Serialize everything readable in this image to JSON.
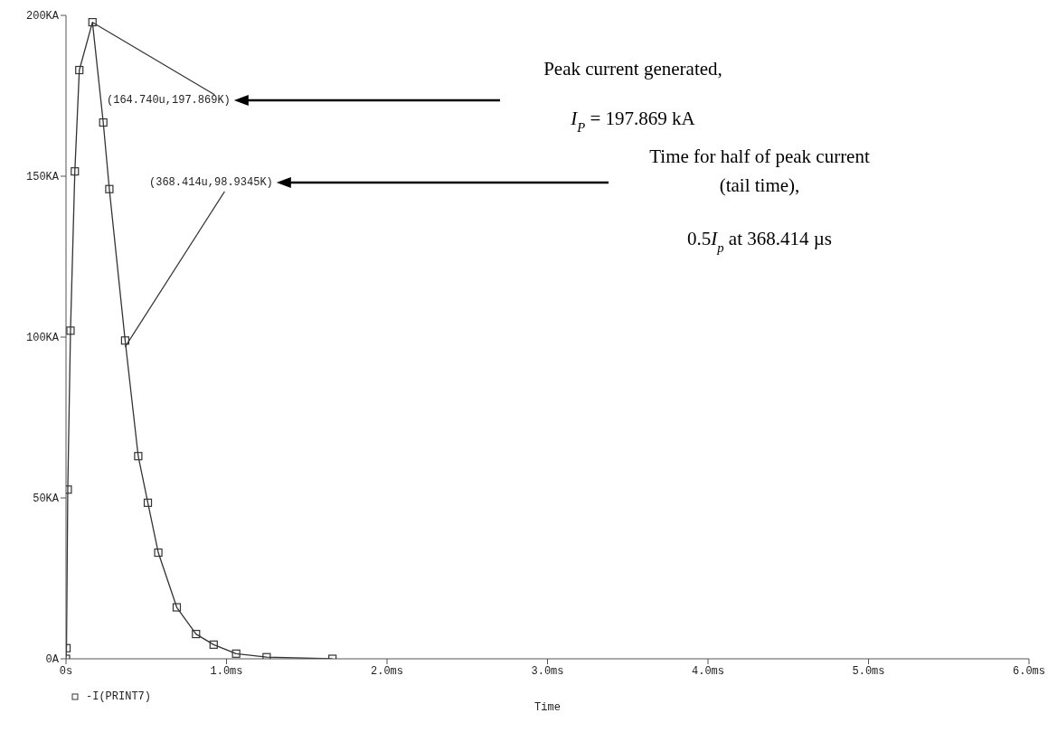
{
  "chart_data": {
    "type": "line",
    "xlabel": "Time",
    "legend": "bottom left",
    "marker": "square",
    "line_style": "solid",
    "grid": false,
    "xlim": [
      0,
      6
    ],
    "ylim": [
      0,
      200
    ],
    "xticks": [
      {
        "value": 0,
        "label": "0s"
      },
      {
        "value": 1,
        "label": "1.0ms"
      },
      {
        "value": 2,
        "label": "2.0ms"
      },
      {
        "value": 3,
        "label": "3.0ms"
      },
      {
        "value": 4,
        "label": "4.0ms"
      },
      {
        "value": 5,
        "label": "5.0ms"
      },
      {
        "value": 6,
        "label": "6.0ms"
      }
    ],
    "yticks": [
      {
        "value": 0,
        "label": "0A"
      },
      {
        "value": 50,
        "label": "50KA"
      },
      {
        "value": 100,
        "label": "100KA"
      },
      {
        "value": 150,
        "label": "150KA"
      },
      {
        "value": 200,
        "label": "200KA"
      }
    ],
    "series": [
      {
        "name": "-I(PRINT7)",
        "color": "#333333",
        "x": [
          0,
          0.003,
          0.011,
          0.028,
          0.055,
          0.083,
          0.16474,
          0.232,
          0.27,
          0.368414,
          0.45,
          0.51,
          0.575,
          0.69,
          0.81,
          0.92,
          1.06,
          1.25,
          1.66
        ],
        "values": [
          0,
          3.3,
          52.6,
          102,
          151.5,
          183,
          197.869,
          166.7,
          146,
          98.9345,
          63,
          48.5,
          33,
          16,
          7.7,
          4.4,
          1.6,
          0.5,
          0
        ]
      }
    ],
    "annotations": [
      {
        "text": "(164.740u,197.869K)",
        "x": 0.16474,
        "y": 197.869
      },
      {
        "text": "(368.414u,98.9345K)",
        "x": 0.368414,
        "y": 98.9345
      },
      "Peak current generated,",
      "I$_{P}$ = 197.869 kA",
      "Time for half of peak current",
      "(tail time),",
      "0.5I$_{p}$ at  368.414 µs"
    ]
  }
}
